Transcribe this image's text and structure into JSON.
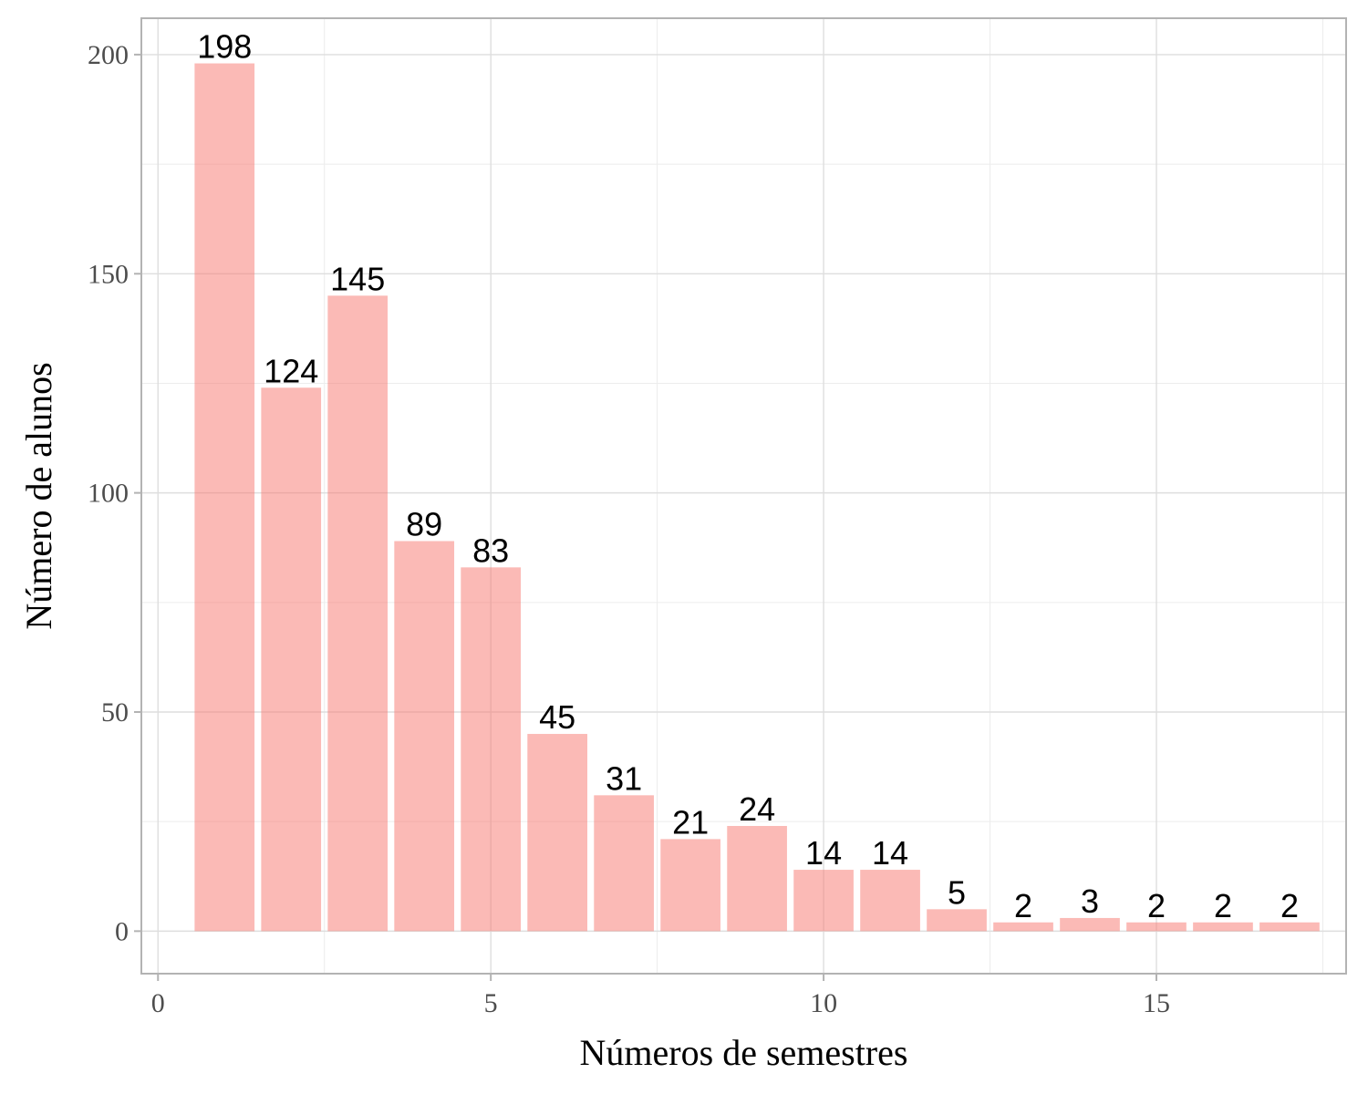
{
  "chart_data": {
    "type": "bar",
    "title": "",
    "xlabel": "Números de semestres",
    "ylabel": "Número de alunos",
    "x": [
      1,
      2,
      3,
      4,
      5,
      6,
      7,
      8,
      9,
      10,
      11,
      12,
      13,
      14,
      15,
      16,
      17
    ],
    "values": [
      198,
      124,
      145,
      89,
      83,
      45,
      31,
      21,
      24,
      14,
      14,
      5,
      2,
      3,
      2,
      2,
      2
    ],
    "xlim": [
      -0.25,
      17.85
    ],
    "ylim": [
      -9.7,
      208.3
    ],
    "x_ticks": [
      0,
      5,
      10,
      15
    ],
    "y_ticks": [
      0,
      50,
      100,
      150,
      200
    ],
    "grid": true,
    "legend": "none",
    "colors": {
      "bar": "#f8766d",
      "bar_opacity": 0.5,
      "grid_major": "#dedede",
      "grid_minor": "#ececec",
      "panel_border": "#b3b3b3",
      "tick_label": "#4d4d4d"
    }
  }
}
